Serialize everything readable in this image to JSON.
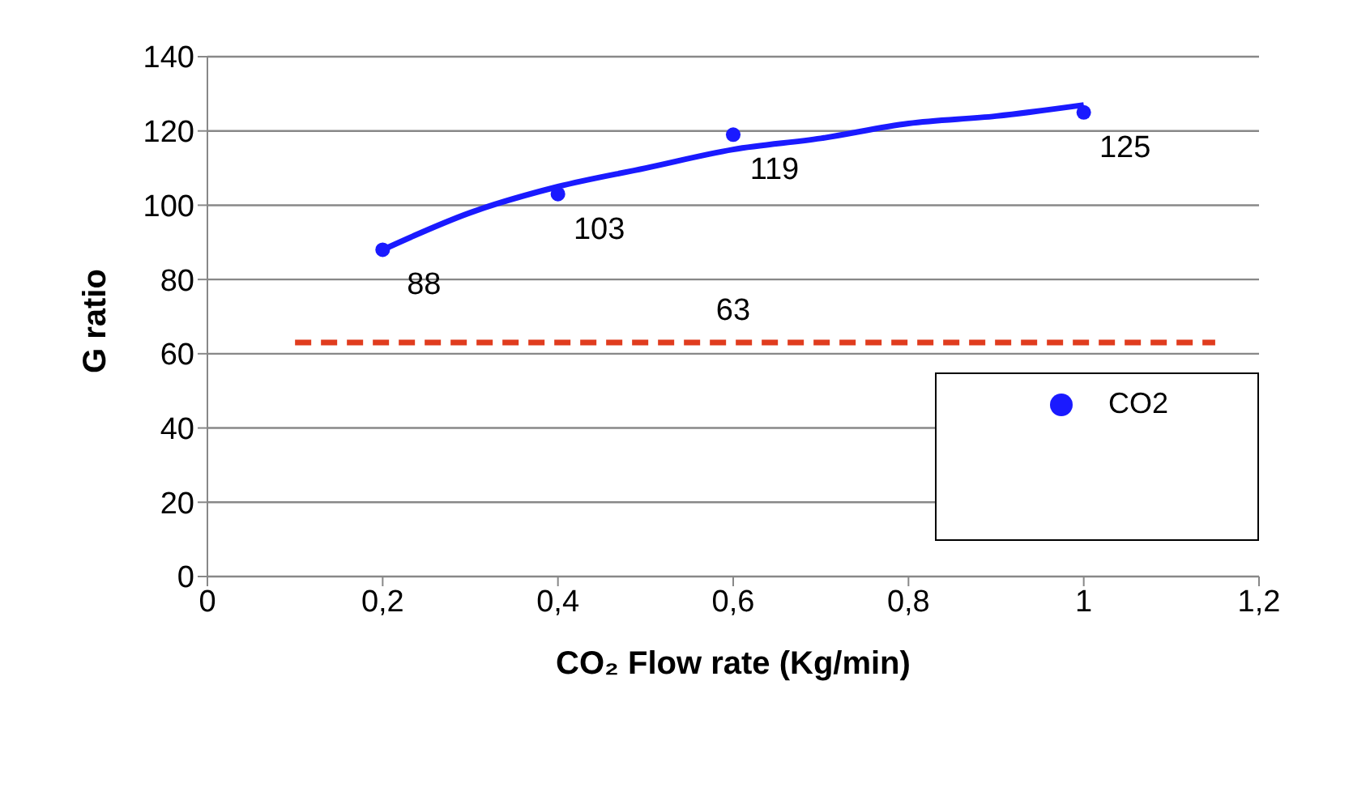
{
  "chart_data": {
    "type": "scatter",
    "xlabel": "CO₂ Flow rate (Kg/min)",
    "ylabel": "G ratio",
    "xlim": [
      0,
      1.2
    ],
    "xticks": [
      0,
      {
        "value": 0.2,
        "label": "0,2"
      },
      {
        "value": 0.4,
        "label": "0,4"
      },
      {
        "value": 0.6,
        "label": "0,6"
      },
      {
        "value": 0.8,
        "label": "0,8"
      },
      1,
      {
        "value": 1.2,
        "label": "1,2"
      }
    ],
    "ylim": [
      0,
      140
    ],
    "yticks": [
      0,
      20,
      40,
      60,
      80,
      100,
      120,
      140
    ],
    "grid": "y",
    "legend": "bottom right",
    "series": [
      {
        "type": "line",
        "color": "#1a1aff",
        "x": [
          0.2,
          0.3,
          0.4,
          0.5,
          0.6,
          0.7,
          0.8,
          0.9,
          1.0
        ],
        "values": [
          88,
          98,
          105,
          110,
          115,
          118,
          122,
          124,
          127
        ],
        "line_style": "solid",
        "marker": "none"
      },
      {
        "type": "line",
        "color": "#e03c1e",
        "x": [
          0.1,
          1.15
        ],
        "values": [
          63,
          63
        ],
        "line_style": "dashed",
        "marker": "none"
      },
      {
        "name": "CO2",
        "color": "#1a1aff",
        "x": [
          0.2,
          0.4,
          0.6,
          1.0
        ],
        "values": [
          88,
          103,
          119,
          125
        ],
        "marker": "circle",
        "value_labels": [
          "88",
          "103",
          "119",
          "125"
        ]
      }
    ],
    "annotations": [
      {
        "text": "63",
        "x": 0.6,
        "y": 63
      }
    ]
  }
}
